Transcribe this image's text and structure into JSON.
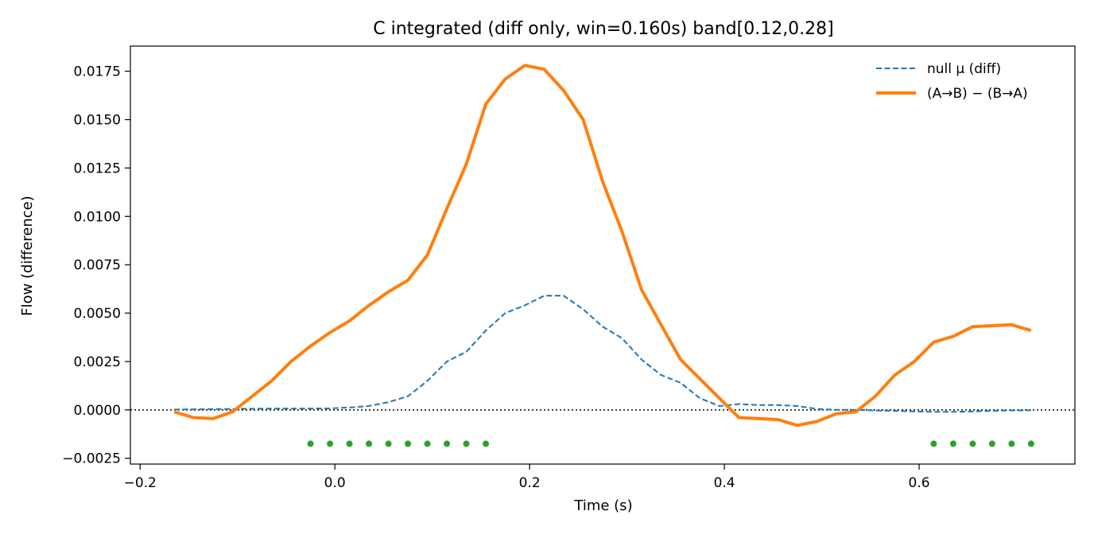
{
  "chart_data": {
    "type": "line",
    "title": "C integrated (diff only, win=0.160s)   band[0.12,0.28]",
    "xlabel": "Time (s)",
    "ylabel": "Flow (difference)",
    "xlim": [
      -0.21,
      0.76
    ],
    "ylim": [
      -0.0028,
      0.0188
    ],
    "xticks": [
      -0.2,
      0.0,
      0.2,
      0.4,
      0.6
    ],
    "xtick_labels": [
      "−0.2",
      "0.0",
      "0.2",
      "0.4",
      "0.6"
    ],
    "yticks": [
      -0.0025,
      0.0,
      0.0025,
      0.005,
      0.0075,
      0.01,
      0.0125,
      0.015,
      0.0175
    ],
    "ytick_labels": [
      "−0.0025",
      "0.0000",
      "0.0025",
      "0.0050",
      "0.0075",
      "0.0100",
      "0.0125",
      "0.0150",
      "0.0175"
    ],
    "grid": false,
    "legend_position": "top-right",
    "zero_line": {
      "y": 0,
      "style": "dotted",
      "color": "#000000"
    },
    "x": [
      -0.165,
      -0.145,
      -0.125,
      -0.105,
      -0.085,
      -0.065,
      -0.045,
      -0.025,
      -0.005,
      0.015,
      0.035,
      0.055,
      0.075,
      0.095,
      0.115,
      0.135,
      0.155,
      0.175,
      0.195,
      0.215,
      0.235,
      0.255,
      0.275,
      0.295,
      0.315,
      0.335,
      0.355,
      0.375,
      0.395,
      0.415,
      0.435,
      0.455,
      0.475,
      0.495,
      0.515,
      0.535,
      0.555,
      0.575,
      0.595,
      0.615,
      0.635,
      0.655,
      0.675,
      0.695,
      0.715
    ],
    "series": [
      {
        "name": "null μ (diff)",
        "color": "#1f77b4",
        "style": "dashed",
        "values": [
          2e-05,
          3e-05,
          4e-05,
          5e-05,
          6e-05,
          7e-05,
          7e-05,
          7e-05,
          8e-05,
          0.00012,
          0.0002,
          0.0004,
          0.0007,
          0.0015,
          0.0025,
          0.003,
          0.0041,
          0.005,
          0.0054,
          0.0059,
          0.0059,
          0.0052,
          0.0043,
          0.0037,
          0.0026,
          0.0018,
          0.0014,
          0.0006,
          0.0002,
          0.0003,
          0.00025,
          0.00025,
          0.0002,
          5e-05,
          0.0,
          0.0,
          -3e-05,
          -5e-05,
          -8e-05,
          -0.0001,
          -0.0001,
          -8e-05,
          -5e-05,
          -3e-05,
          -2e-05
        ]
      },
      {
        "name": "(A→B) − (B→A)",
        "color": "#ff7f0e",
        "style": "solid",
        "values": [
          -0.0001,
          -0.0004,
          -0.00045,
          -0.0001,
          0.0007,
          0.0015,
          0.0025,
          0.0033,
          0.004,
          0.0046,
          0.0054,
          0.0061,
          0.0067,
          0.008,
          0.0104,
          0.0127,
          0.0158,
          0.0171,
          0.0178,
          0.0176,
          0.0165,
          0.015,
          0.0118,
          0.0092,
          0.0062,
          0.0044,
          0.0026,
          0.0016,
          0.0006,
          -0.0004,
          -0.00045,
          -0.0005,
          -0.0008,
          -0.0006,
          -0.0002,
          -0.0001,
          0.0007,
          0.0018,
          0.0025,
          0.0035,
          0.0038,
          0.0043,
          0.00435,
          0.0044,
          0.0041
        ]
      }
    ],
    "markers": {
      "color": "#2ca02c",
      "y": -0.00175,
      "x": [
        -0.025,
        -0.005,
        0.015,
        0.035,
        0.055,
        0.075,
        0.095,
        0.115,
        0.135,
        0.155,
        0.615,
        0.635,
        0.655,
        0.675,
        0.695,
        0.715
      ]
    }
  }
}
